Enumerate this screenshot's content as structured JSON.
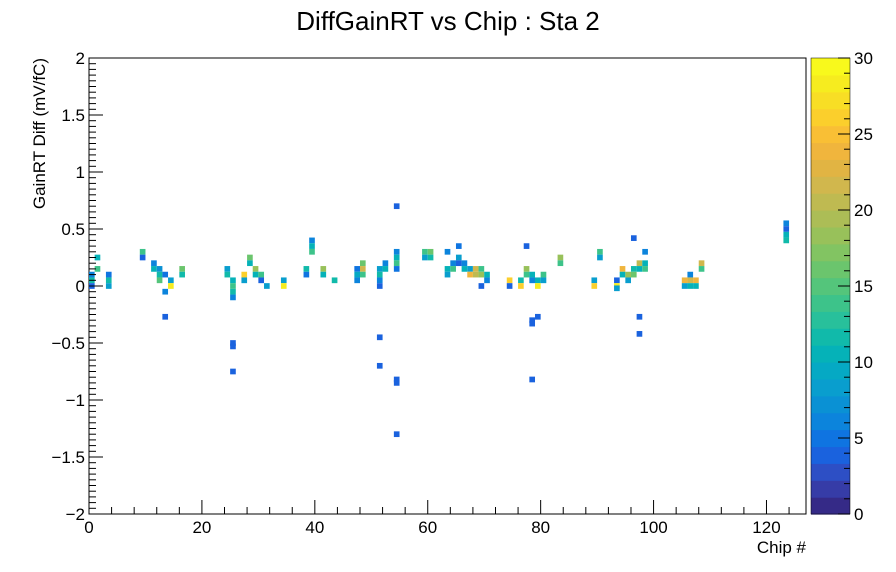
{
  "chart_data": {
    "type": "heatmap",
    "title": "DiffGainRT vs Chip : Sta 2",
    "xlabel": "Chip #",
    "ylabel": "GainRT Diff (mV/fC)",
    "xlim": [
      0,
      127
    ],
    "ylim": [
      -2,
      2
    ],
    "zlim": [
      0,
      30
    ],
    "x_ticks": [
      0,
      20,
      40,
      60,
      80,
      100,
      120
    ],
    "y_ticks": [
      -2,
      -1.5,
      -1,
      -0.5,
      0,
      0.5,
      1,
      1.5,
      2
    ],
    "z_ticks": [
      0,
      5,
      10,
      15,
      20,
      25,
      30
    ],
    "x_tick_labels": [
      "0",
      "20",
      "40",
      "60",
      "80",
      "100",
      "120"
    ],
    "y_tick_labels": [
      "−2",
      "−1.5",
      "−1",
      "−0.5",
      "0",
      "0.5",
      "1",
      "1.5",
      "2"
    ],
    "z_tick_labels": [
      "0",
      "5",
      "10",
      "15",
      "20",
      "25",
      "30"
    ],
    "grid": false,
    "colormap": "parula",
    "palette": [
      "#352a87",
      "#363ca7",
      "#2d4fc5",
      "#1a62de",
      "#0f74e1",
      "#0c84dc",
      "#0a91d4",
      "#099ece",
      "#05a9c4",
      "#05b2b8",
      "#11baaa",
      "#28c09b",
      "#3dc38a",
      "#54c57b",
      "#6bc56d",
      "#82c462",
      "#98c15a",
      "#acbd56",
      "#bfba51",
      "#d1b74d",
      "#e1b443",
      "#f0b53d",
      "#f9bf35",
      "#fbcf2c",
      "#f8de25",
      "#f6ec1f",
      "#f8f91c"
    ],
    "cells": [
      [
        0,
        0.1,
        6
      ],
      [
        0,
        0.05,
        12
      ],
      [
        0,
        0.0,
        4
      ],
      [
        1,
        0.25,
        10
      ],
      [
        1,
        0.15,
        14
      ],
      [
        3,
        0.1,
        5
      ],
      [
        3,
        0.05,
        12
      ],
      [
        3,
        0.0,
        8
      ],
      [
        9,
        0.3,
        14
      ],
      [
        9,
        0.25,
        4
      ],
      [
        11,
        0.2,
        6
      ],
      [
        11,
        0.15,
        10
      ],
      [
        12,
        0.15,
        7
      ],
      [
        12,
        0.1,
        12
      ],
      [
        12,
        0.05,
        15
      ],
      [
        13,
        0.1,
        5
      ],
      [
        13,
        -0.05,
        6
      ],
      [
        13,
        -0.27,
        4
      ],
      [
        14,
        0.05,
        8
      ],
      [
        14,
        0.0,
        28
      ],
      [
        16,
        0.15,
        16
      ],
      [
        16,
        0.1,
        12
      ],
      [
        24,
        0.15,
        8
      ],
      [
        24,
        0.1,
        12
      ],
      [
        25,
        0.05,
        10
      ],
      [
        25,
        0.0,
        14
      ],
      [
        25,
        -0.05,
        12
      ],
      [
        25,
        -0.1,
        6
      ],
      [
        25,
        -0.5,
        4
      ],
      [
        25,
        -0.53,
        4
      ],
      [
        25,
        -0.75,
        4
      ],
      [
        27,
        0.1,
        26
      ],
      [
        27,
        0.05,
        8
      ],
      [
        28,
        0.25,
        16
      ],
      [
        28,
        0.2,
        10
      ],
      [
        29,
        0.15,
        18
      ],
      [
        29,
        0.1,
        10
      ],
      [
        30,
        0.1,
        14
      ],
      [
        30,
        0.05,
        4
      ],
      [
        31,
        0.0,
        8
      ],
      [
        34,
        0.05,
        8
      ],
      [
        34,
        0.0,
        28
      ],
      [
        38,
        0.15,
        12
      ],
      [
        38,
        0.1,
        5
      ],
      [
        39,
        0.4,
        6
      ],
      [
        39,
        0.35,
        10
      ],
      [
        39,
        0.3,
        14
      ],
      [
        41,
        0.15,
        18
      ],
      [
        41,
        0.1,
        10
      ],
      [
        43,
        0.05,
        12
      ],
      [
        47,
        0.15,
        5
      ],
      [
        47,
        0.1,
        9
      ],
      [
        47,
        0.05,
        6
      ],
      [
        48,
        0.2,
        16
      ],
      [
        48,
        0.15,
        22
      ],
      [
        48,
        0.1,
        14
      ],
      [
        51,
        0.15,
        8
      ],
      [
        51,
        0.1,
        12
      ],
      [
        51,
        0.05,
        6
      ],
      [
        51,
        0.0,
        4
      ],
      [
        51,
        -0.45,
        4
      ],
      [
        51,
        -0.7,
        4
      ],
      [
        52,
        0.2,
        6
      ],
      [
        52,
        0.15,
        10
      ],
      [
        54,
        0.7,
        4
      ],
      [
        54,
        0.3,
        6
      ],
      [
        54,
        0.25,
        10
      ],
      [
        54,
        0.2,
        14
      ],
      [
        54,
        0.15,
        5
      ],
      [
        54,
        -0.82,
        4
      ],
      [
        54,
        -0.85,
        4
      ],
      [
        54,
        -1.3,
        4
      ],
      [
        59,
        0.3,
        14
      ],
      [
        59,
        0.25,
        8
      ],
      [
        60,
        0.3,
        16
      ],
      [
        60,
        0.25,
        12
      ],
      [
        63,
        0.3,
        6
      ],
      [
        63,
        0.15,
        10
      ],
      [
        63,
        0.1,
        8
      ],
      [
        64,
        0.2,
        6
      ],
      [
        64,
        0.15,
        14
      ],
      [
        65,
        0.35,
        5
      ],
      [
        65,
        0.25,
        8
      ],
      [
        65,
        0.2,
        4
      ],
      [
        66,
        0.2,
        6
      ],
      [
        66,
        0.15,
        10
      ],
      [
        67,
        0.15,
        8
      ],
      [
        67,
        0.1,
        24
      ],
      [
        68,
        0.15,
        22
      ],
      [
        68,
        0.1,
        20
      ],
      [
        69,
        0.15,
        14
      ],
      [
        69,
        0.1,
        18
      ],
      [
        69,
        0.0,
        4
      ],
      [
        70,
        0.1,
        10
      ],
      [
        70,
        0.05,
        6
      ],
      [
        74,
        0.05,
        26
      ],
      [
        74,
        0.0,
        4
      ],
      [
        76,
        0.05,
        12
      ],
      [
        76,
        0.0,
        26
      ],
      [
        77,
        0.35,
        4
      ],
      [
        77,
        0.15,
        18
      ],
      [
        77,
        0.1,
        14
      ],
      [
        78,
        0.1,
        10
      ],
      [
        78,
        0.05,
        6
      ],
      [
        78,
        -0.3,
        4
      ],
      [
        78,
        -0.33,
        4
      ],
      [
        78,
        -0.82,
        4
      ],
      [
        79,
        0.05,
        10
      ],
      [
        79,
        0.0,
        28
      ],
      [
        79,
        -0.27,
        4
      ],
      [
        80,
        0.1,
        14
      ],
      [
        80,
        0.05,
        8
      ],
      [
        83,
        0.25,
        18
      ],
      [
        83,
        0.2,
        14
      ],
      [
        89,
        0.05,
        8
      ],
      [
        89,
        0.0,
        26
      ],
      [
        90,
        0.3,
        14
      ],
      [
        90,
        0.25,
        8
      ],
      [
        93,
        0.05,
        4
      ],
      [
        93,
        0.0,
        28
      ],
      [
        93,
        -0.02,
        8
      ],
      [
        94,
        0.15,
        24
      ],
      [
        94,
        0.1,
        10
      ],
      [
        95,
        0.1,
        18
      ],
      [
        95,
        0.05,
        8
      ],
      [
        96,
        0.42,
        4
      ],
      [
        96,
        0.15,
        12
      ],
      [
        96,
        0.1,
        16
      ],
      [
        97,
        0.2,
        20
      ],
      [
        97,
        0.15,
        10
      ],
      [
        97,
        -0.27,
        4
      ],
      [
        97,
        -0.42,
        4
      ],
      [
        98,
        0.3,
        6
      ],
      [
        98,
        0.2,
        10
      ],
      [
        98,
        0.15,
        14
      ],
      [
        105,
        0.05,
        24
      ],
      [
        105,
        0.0,
        8
      ],
      [
        106,
        0.1,
        6
      ],
      [
        106,
        0.05,
        22
      ],
      [
        106,
        0.0,
        10
      ],
      [
        107,
        0.05,
        24
      ],
      [
        107,
        0.0,
        10
      ],
      [
        108,
        0.2,
        22
      ],
      [
        108,
        0.15,
        14
      ],
      [
        123,
        0.55,
        6
      ],
      [
        123,
        0.5,
        4
      ],
      [
        123,
        0.45,
        10
      ],
      [
        123,
        0.4,
        12
      ]
    ]
  }
}
